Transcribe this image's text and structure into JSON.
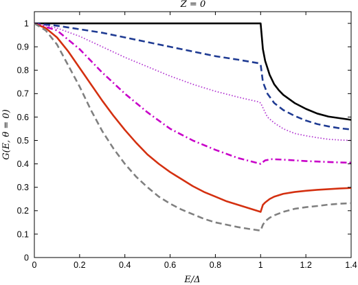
{
  "chart_data": {
    "type": "line",
    "title": "Z = 0",
    "xlabel": "E/Δ",
    "ylabel": "G(E, θ = 0)",
    "xlim": [
      0,
      1.4
    ],
    "ylim": [
      0,
      1.05
    ],
    "xticks": [
      0,
      0.2,
      0.4,
      0.6,
      0.8,
      1,
      1.2,
      1.4
    ],
    "yticks": [
      0,
      0.1,
      0.2,
      0.3,
      0.4,
      0.5,
      0.6,
      0.7,
      0.8,
      0.9,
      1
    ],
    "xtick_labels": [
      "0",
      "0.2",
      "0.4",
      "0.6",
      "0.8",
      "1",
      "1.2",
      "1.4"
    ],
    "ytick_labels": [
      "0",
      "0.1",
      "0.2",
      "0.3",
      "0.4",
      "0.5",
      "0.6",
      "0.7",
      "0.8",
      "0.9",
      "1"
    ],
    "grid": false,
    "series": [
      {
        "color": "#000000",
        "style": "solid",
        "x": [
          0,
          0.2,
          0.4,
          0.6,
          0.8,
          0.99,
          1.0,
          1.01,
          1.02,
          1.04,
          1.06,
          1.08,
          1.1,
          1.15,
          1.2,
          1.25,
          1.3,
          1.35,
          1.4
        ],
        "y": [
          1.0,
          1.0,
          1.0,
          1.0,
          1.0,
          1.0,
          1.0,
          0.89,
          0.84,
          0.78,
          0.74,
          0.715,
          0.695,
          0.66,
          0.635,
          0.615,
          0.602,
          0.595,
          0.588
        ]
      },
      {
        "color": "#1f3b93",
        "style": "dashed",
        "x": [
          0,
          0.1,
          0.2,
          0.3,
          0.4,
          0.5,
          0.6,
          0.7,
          0.8,
          0.9,
          0.99,
          1.0,
          1.01,
          1.03,
          1.06,
          1.1,
          1.15,
          1.2,
          1.25,
          1.3,
          1.35,
          1.4
        ],
        "y": [
          1.0,
          0.99,
          0.975,
          0.96,
          0.94,
          0.92,
          0.9,
          0.88,
          0.86,
          0.845,
          0.83,
          0.825,
          0.75,
          0.7,
          0.66,
          0.63,
          0.605,
          0.585,
          0.57,
          0.56,
          0.552,
          0.547
        ]
      },
      {
        "color": "#b43cd2",
        "style": "dotted",
        "x": [
          0,
          0.1,
          0.2,
          0.3,
          0.4,
          0.5,
          0.6,
          0.7,
          0.8,
          0.9,
          0.99,
          1.0,
          1.03,
          1.06,
          1.1,
          1.15,
          1.2,
          1.25,
          1.3,
          1.35,
          1.4
        ],
        "y": [
          1.0,
          0.98,
          0.945,
          0.9,
          0.855,
          0.815,
          0.775,
          0.74,
          0.71,
          0.685,
          0.665,
          0.66,
          0.6,
          0.575,
          0.55,
          0.53,
          0.52,
          0.512,
          0.505,
          0.502,
          0.5
        ]
      },
      {
        "color": "#c800c8",
        "style": "dashdot",
        "x": [
          0,
          0.1,
          0.2,
          0.3,
          0.4,
          0.5,
          0.6,
          0.7,
          0.8,
          0.9,
          1.0,
          1.02,
          1.05,
          1.1,
          1.15,
          1.2,
          1.25,
          1.3,
          1.35,
          1.4
        ],
        "y": [
          1.0,
          0.97,
          0.89,
          0.79,
          0.7,
          0.62,
          0.55,
          0.5,
          0.46,
          0.425,
          0.4,
          0.415,
          0.42,
          0.418,
          0.415,
          0.412,
          0.41,
          0.408,
          0.406,
          0.405
        ]
      },
      {
        "color": "#d43010",
        "style": "solid",
        "x": [
          0,
          0.05,
          0.1,
          0.15,
          0.2,
          0.25,
          0.3,
          0.35,
          0.4,
          0.45,
          0.5,
          0.55,
          0.6,
          0.65,
          0.7,
          0.75,
          0.8,
          0.85,
          0.9,
          0.95,
          1.0,
          1.01,
          1.02,
          1.04,
          1.06,
          1.1,
          1.15,
          1.2,
          1.25,
          1.3,
          1.35,
          1.4
        ],
        "y": [
          1.0,
          0.98,
          0.94,
          0.88,
          0.81,
          0.74,
          0.67,
          0.605,
          0.545,
          0.49,
          0.44,
          0.4,
          0.365,
          0.335,
          0.305,
          0.28,
          0.26,
          0.24,
          0.225,
          0.21,
          0.195,
          0.225,
          0.235,
          0.25,
          0.26,
          0.272,
          0.28,
          0.285,
          0.289,
          0.292,
          0.295,
          0.297
        ]
      },
      {
        "color": "#808080",
        "style": "dashed",
        "x": [
          0,
          0.05,
          0.1,
          0.15,
          0.2,
          0.25,
          0.3,
          0.35,
          0.4,
          0.45,
          0.5,
          0.55,
          0.6,
          0.65,
          0.7,
          0.75,
          0.8,
          0.85,
          0.9,
          0.95,
          1.0,
          1.01,
          1.02,
          1.04,
          1.06,
          1.1,
          1.15,
          1.2,
          1.25,
          1.3,
          1.35,
          1.4
        ],
        "y": [
          1.0,
          0.97,
          0.91,
          0.82,
          0.73,
          0.63,
          0.54,
          0.465,
          0.4,
          0.345,
          0.3,
          0.26,
          0.23,
          0.205,
          0.185,
          0.165,
          0.15,
          0.14,
          0.13,
          0.122,
          0.115,
          0.14,
          0.155,
          0.17,
          0.18,
          0.195,
          0.208,
          0.215,
          0.22,
          0.226,
          0.23,
          0.232
        ]
      }
    ]
  }
}
